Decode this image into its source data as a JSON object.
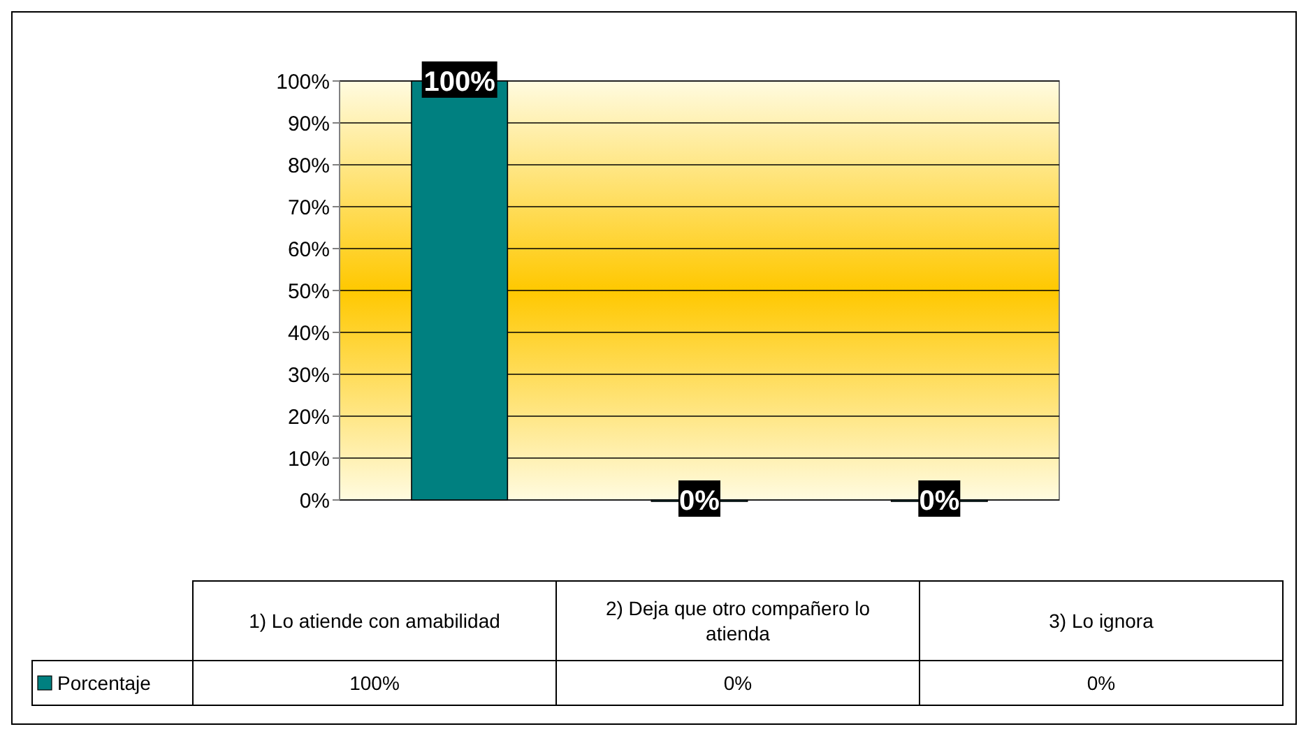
{
  "chart_data": {
    "type": "bar",
    "categories": [
      "1) Lo atiende con amabilidad",
      "2) Deja  que otro compañero lo atienda",
      "3) Lo ignora"
    ],
    "series": [
      {
        "name": "Porcentaje",
        "color": "#008080",
        "values": [
          100,
          0,
          0
        ],
        "value_labels": [
          "100%",
          "0%",
          "0%"
        ]
      }
    ],
    "ylim": [
      0,
      100
    ],
    "yticks": [
      {
        "value": 0,
        "label": "0%"
      },
      {
        "value": 10,
        "label": "10%"
      },
      {
        "value": 20,
        "label": "20%"
      },
      {
        "value": 30,
        "label": "30%"
      },
      {
        "value": 40,
        "label": "40%"
      },
      {
        "value": 50,
        "label": "50%"
      },
      {
        "value": 60,
        "label": "60%"
      },
      {
        "value": 70,
        "label": "70%"
      },
      {
        "value": 80,
        "label": "80%"
      },
      {
        "value": 90,
        "label": "90%"
      },
      {
        "value": 100,
        "label": "100%"
      }
    ],
    "grid": "y",
    "legend": "bottom left"
  }
}
